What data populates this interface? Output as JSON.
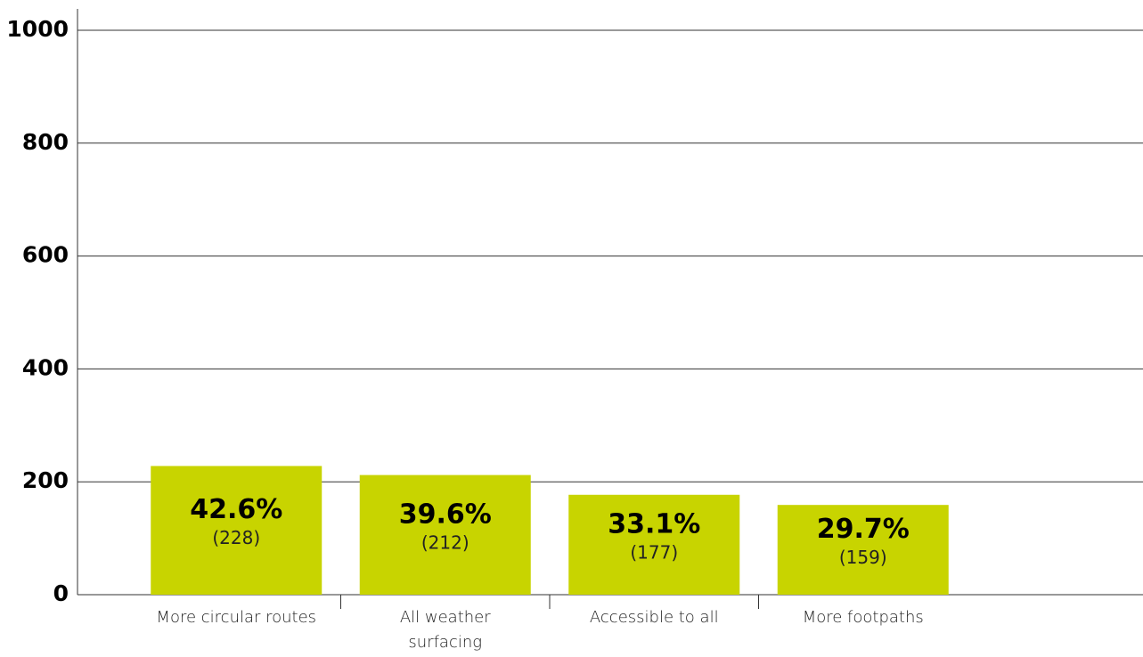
{
  "chart_data": {
    "type": "bar",
    "categories": [
      "More circular routes",
      "All weather surfacing",
      "Accessible to all",
      "More footpaths"
    ],
    "values": [
      228,
      212,
      177,
      159
    ],
    "value_labels": [
      "(228)",
      "(212)",
      "(177)",
      "(159)"
    ],
    "percent_labels": [
      "42.6%",
      "39.6%",
      "33.1%",
      "29.7%"
    ],
    "color": "#c8d400",
    "ylim": [
      0,
      1000
    ],
    "yticks": [
      0,
      200,
      400,
      600,
      800,
      1000
    ],
    "grid": true
  }
}
